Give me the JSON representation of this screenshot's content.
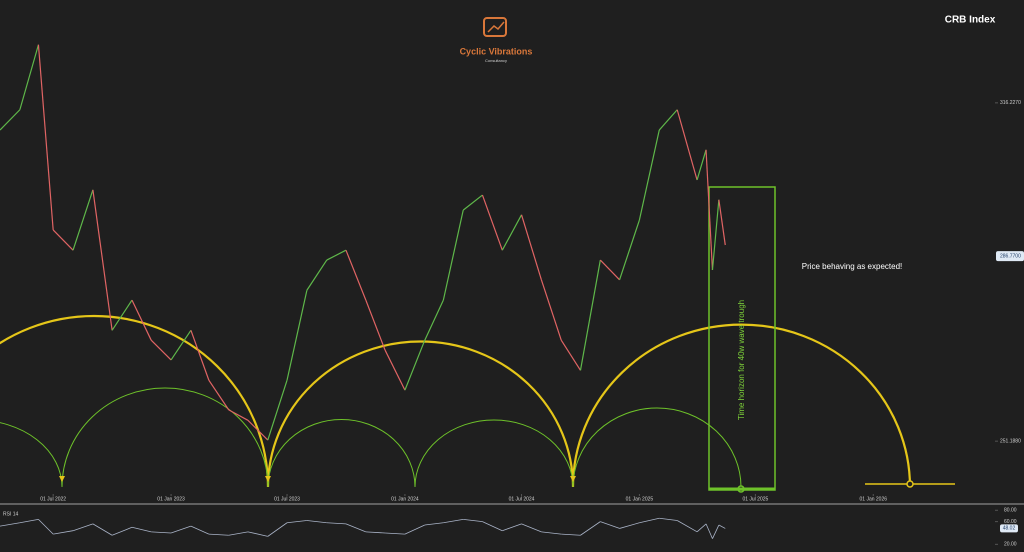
{
  "brand": {
    "name": "Cyclic Vibrations",
    "tagline": "Consultancy"
  },
  "chart_data": [
    {
      "type": "line",
      "title": "CRB Index",
      "annotations": [
        "Price behaving as expected!",
        "Time horizon for 40w wave trough"
      ],
      "up_color": "#5fb84a",
      "down_color": "#e06464",
      "x": [
        "2022-04-09",
        "2022-05-10",
        "2022-06-08",
        "2022-07-01",
        "2022-08-01",
        "2022-09-01",
        "2022-10-01",
        "2022-11-01",
        "2022-12-01",
        "2023-01-01",
        "2023-02-01",
        "2023-03-01",
        "2023-04-01",
        "2023-05-01",
        "2023-06-01",
        "2023-07-01",
        "2023-08-01",
        "2023-09-01",
        "2023-10-01",
        "2023-11-01",
        "2023-12-01",
        "2024-01-01",
        "2024-02-01",
        "2024-03-01",
        "2024-04-01",
        "2024-05-01",
        "2024-06-01",
        "2024-07-01",
        "2024-08-01",
        "2024-09-01",
        "2024-10-01",
        "2024-11-01",
        "2024-12-01",
        "2025-01-01",
        "2025-02-01",
        "2025-03-01",
        "2025-04-01",
        "2025-04-15",
        "2025-04-25",
        "2025-05-05",
        "2025-05-15"
      ],
      "values": [
        311.0,
        314.9,
        327.4,
        291.8,
        287.9,
        299.5,
        272.5,
        278.3,
        270.6,
        266.8,
        272.5,
        262.9,
        257.2,
        255.2,
        251.4,
        262.9,
        280.2,
        286.0,
        287.9,
        278.3,
        268.7,
        261.0,
        270.6,
        278.3,
        295.6,
        298.5,
        287.9,
        294.7,
        282.2,
        270.6,
        264.8,
        286.0,
        282.2,
        293.7,
        311.0,
        314.9,
        301.4,
        307.2,
        284.1,
        297.6,
        288.9
      ],
      "xlim": [
        "2022-04-09",
        "2026-07-10"
      ],
      "xticks": [
        {
          "value": "2022-07-01",
          "label": "01 Jul 2022"
        },
        {
          "value": "2023-01-01",
          "label": "01 Jan 2023"
        },
        {
          "value": "2023-07-01",
          "label": "01 Jul 2023"
        },
        {
          "value": "2024-01-01",
          "label": "01 Jan 2024"
        },
        {
          "value": "2024-07-01",
          "label": "01 Jul 2024"
        },
        {
          "value": "2025-01-01",
          "label": "01 Jan 2025"
        },
        {
          "value": "2025-07-01",
          "label": "01 Jul 2025"
        },
        {
          "value": "2026-01-01",
          "label": "01 Jan 2026"
        }
      ],
      "ylim": [
        241.8,
        336.0
      ],
      "yticks": [
        {
          "value": 316.227,
          "label": "316.2270"
        },
        {
          "value": 286.77,
          "label": "286.7700"
        },
        {
          "value": 251.188,
          "label": "251.1880"
        }
      ]
    },
    {
      "type": "line",
      "title": "RSI 14",
      "color": "#aab4c8",
      "x": [
        "2022-04-09",
        "2022-05-10",
        "2022-06-08",
        "2022-07-01",
        "2022-08-01",
        "2022-09-01",
        "2022-10-01",
        "2022-11-01",
        "2022-12-01",
        "2023-01-01",
        "2023-02-01",
        "2023-03-01",
        "2023-04-01",
        "2023-05-01",
        "2023-06-01",
        "2023-07-01",
        "2023-08-01",
        "2023-09-01",
        "2023-10-01",
        "2023-11-01",
        "2023-12-01",
        "2024-01-01",
        "2024-02-01",
        "2024-03-01",
        "2024-04-01",
        "2024-05-01",
        "2024-06-01",
        "2024-07-01",
        "2024-08-01",
        "2024-09-01",
        "2024-10-01",
        "2024-11-01",
        "2024-12-01",
        "2025-01-01",
        "2025-02-01",
        "2025-03-01",
        "2025-04-01",
        "2025-04-15",
        "2025-04-25",
        "2025-05-05",
        "2025-05-15"
      ],
      "values": [
        52,
        58,
        64,
        38,
        44,
        56,
        36,
        50,
        42,
        40,
        52,
        38,
        36,
        42,
        34,
        58,
        62,
        58,
        56,
        42,
        40,
        38,
        54,
        58,
        64,
        60,
        44,
        56,
        42,
        38,
        36,
        60,
        48,
        58,
        66,
        62,
        42,
        56,
        30,
        54,
        48.02
      ],
      "ylim": [
        10,
        84
      ],
      "yticks": [
        {
          "value": 80,
          "label": "80.00"
        },
        {
          "value": 60,
          "label": "60.00"
        },
        {
          "value": 20,
          "label": "20.00"
        }
      ],
      "last_value": 48.02
    }
  ]
}
